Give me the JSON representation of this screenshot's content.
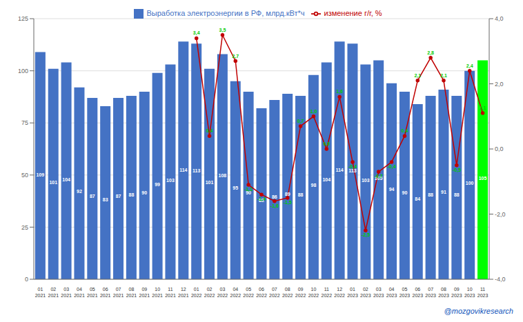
{
  "chart_data": {
    "type": "bar",
    "categories": [
      "01\n2021",
      "02\n2021",
      "03\n2021",
      "04\n2021",
      "05\n2021",
      "06\n2021",
      "07\n2021",
      "08\n2021",
      "09\n2021",
      "10\n2021",
      "11\n2021",
      "12\n2021",
      "01\n2022",
      "02\n2022",
      "03\n2022",
      "04\n2022",
      "05\n2022",
      "06\n2022",
      "07\n2022",
      "08\n2022",
      "09\n2022",
      "10\n2022",
      "11\n2022",
      "12\n2022",
      "01\n2023",
      "02\n2023",
      "03\n2023",
      "04\n2023",
      "05\n2023",
      "06\n2023",
      "07\n2023",
      "08\n2023",
      "09\n2023",
      "10\n2023",
      "11\n2023"
    ],
    "series": [
      {
        "name": "Выработка электроэнергии в РФ, млрд.кВт*ч",
        "type": "bar",
        "color": "#4472C4",
        "colors": [
          "#4472C4",
          "#4472C4",
          "#4472C4",
          "#4472C4",
          "#4472C4",
          "#4472C4",
          "#4472C4",
          "#4472C4",
          "#4472C4",
          "#4472C4",
          "#4472C4",
          "#4472C4",
          "#4472C4",
          "#4472C4",
          "#4472C4",
          "#4472C4",
          "#4472C4",
          "#4472C4",
          "#4472C4",
          "#4472C4",
          "#4472C4",
          "#4472C4",
          "#4472C4",
          "#4472C4",
          "#4472C4",
          "#4472C4",
          "#4472C4",
          "#4472C4",
          "#4472C4",
          "#4472C4",
          "#4472C4",
          "#4472C4",
          "#4472C4",
          "#4472C4",
          "#00FF00"
        ],
        "values": [
          109,
          101,
          104,
          92,
          87,
          83,
          87,
          88,
          90,
          99,
          103,
          114,
          113,
          101,
          108,
          95,
          90,
          82,
          86,
          89,
          88,
          98,
          104,
          114,
          113,
          103,
          105,
          94,
          90,
          84,
          88,
          91,
          88,
          100,
          105
        ],
        "data_labels": true
      },
      {
        "name": "изменение г/г, %",
        "type": "line",
        "axis": "y2",
        "color": "#C00000",
        "marker": "circle",
        "values": [
          null,
          null,
          null,
          null,
          null,
          null,
          null,
          null,
          null,
          null,
          null,
          null,
          3.4,
          0.4,
          3.5,
          2.7,
          -1.1,
          -1.4,
          -1.6,
          -1.5,
          0.7,
          1.0,
          0.0,
          1.6,
          -0.4,
          -2.5,
          -0.7,
          -0.4,
          0.4,
          2.1,
          2.8,
          2.1,
          -0.5,
          2.4,
          1.1
        ],
        "value_labels": [
          null,
          null,
          null,
          null,
          null,
          null,
          null,
          null,
          null,
          null,
          null,
          null,
          "3,4",
          "0,4",
          "3,5",
          "2,7",
          "-1,1",
          "-1,4",
          "-1,6",
          "-1,5",
          "0,7",
          "1,0",
          "0,0",
          "1,6",
          "-0,4",
          "-2,5",
          "-0,7",
          "-0,4",
          "0,4",
          "2,1",
          "2,8",
          "2,1",
          "-0,5",
          "2,4",
          "1,1"
        ],
        "data_labels": true
      }
    ],
    "ylim": [
      0,
      125
    ],
    "yticks": [
      0,
      25,
      50,
      75,
      100,
      125
    ],
    "y2lim": [
      -4.0,
      4.0
    ],
    "y2ticks": [
      {
        "value": -4.0,
        "label": "-4,0"
      },
      {
        "value": -2.0,
        "label": "-2,0"
      },
      {
        "value": 0.0,
        "label": "0,0"
      },
      {
        "value": 2.0,
        "label": "2,0"
      },
      {
        "value": 4.0,
        "label": "4,0"
      }
    ],
    "grid": true,
    "legend": "top",
    "annotations": [
      "@mozgovikresearch"
    ]
  }
}
